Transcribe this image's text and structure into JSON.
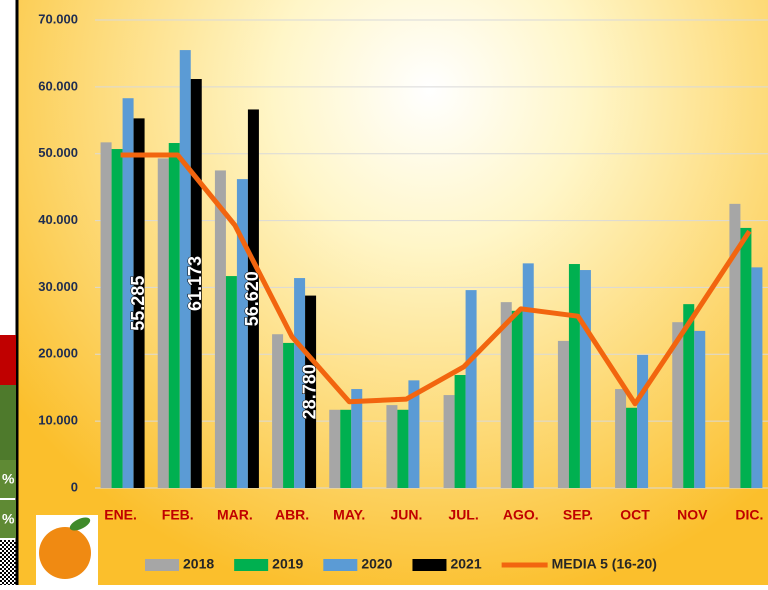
{
  "chart_data": {
    "type": "bar",
    "categories": [
      "ENE.",
      "FEB.",
      "MAR.",
      "ABR.",
      "MAY.",
      "JUN.",
      "JUL.",
      "AGO.",
      "SEP.",
      "OCT",
      "NOV",
      "DIC."
    ],
    "ylim": [
      0,
      70000
    ],
    "yticks": [
      0,
      {
        "value": 10000,
        "label": "10.000"
      },
      {
        "value": 20000,
        "label": "20.000"
      },
      {
        "value": 30000,
        "label": "30.000"
      },
      {
        "value": 40000,
        "label": "40.000"
      },
      {
        "value": 50000,
        "label": "50.000"
      },
      {
        "value": 60000,
        "label": "60.000"
      },
      {
        "value": 70000,
        "label": "70.000"
      }
    ],
    "grid": true,
    "legend": "bottom",
    "series": [
      {
        "name": "2018",
        "color": "#a6a6a6",
        "values": [
          51700,
          49300,
          47500,
          23000,
          11700,
          12400,
          13900,
          27800,
          22000,
          14800,
          24800,
          42500
        ]
      },
      {
        "name": "2019",
        "color": "#00b050",
        "values": [
          50700,
          51600,
          31700,
          21700,
          11700,
          11700,
          16900,
          26500,
          33500,
          12000,
          27500,
          38900
        ]
      },
      {
        "name": "2020",
        "color": "#5b9bd5",
        "values": [
          58300,
          65500,
          46200,
          31400,
          14800,
          16100,
          29600,
          33600,
          32600,
          19900,
          23500,
          33000
        ]
      },
      {
        "name": "2021",
        "color": "#000000",
        "values": [
          55285,
          61173,
          56620,
          28780,
          null,
          null,
          null,
          null,
          null,
          null,
          null,
          null
        ],
        "value_labels": [
          "55.285",
          "61.173",
          "56.620",
          "28.780",
          null,
          null,
          null,
          null,
          null,
          null,
          null,
          null
        ]
      },
      {
        "name": "MEDIA 5 (16-20)",
        "type": "line",
        "color": "#f2650f",
        "values": [
          49800,
          49800,
          39300,
          22600,
          12900,
          13300,
          18100,
          26800,
          25700,
          12600,
          25400,
          38400
        ]
      }
    ]
  },
  "sidebar": {
    "labels": [
      "%",
      "%"
    ]
  }
}
